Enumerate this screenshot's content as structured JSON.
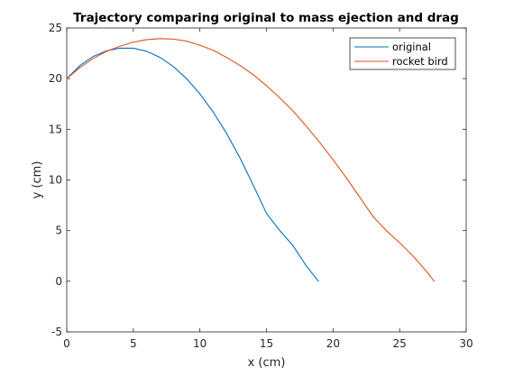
{
  "chart_data": {
    "type": "line",
    "title": "Trajectory comparing original to mass ejection and drag",
    "xlabel": "x (cm)",
    "ylabel": "y (cm)",
    "xlim": [
      0,
      30
    ],
    "ylim": [
      -5,
      25
    ],
    "xticks": [
      "0",
      "5",
      "10",
      "15",
      "20",
      "25",
      "30"
    ],
    "yticks": [
      "-5",
      "0",
      "5",
      "10",
      "15",
      "20",
      "25"
    ],
    "grid": false,
    "legend_position": "top-right",
    "series": [
      {
        "name": "original",
        "color": "#0072BD",
        "x": [
          0,
          1,
          2,
          3,
          4,
          5,
          6,
          7,
          8,
          9,
          10,
          11,
          12,
          13,
          14,
          15,
          16,
          17,
          18,
          18.9
        ],
        "y": [
          20.0,
          21.3,
          22.2,
          22.75,
          23.0,
          23.0,
          22.7,
          22.1,
          21.2,
          20.0,
          18.5,
          16.7,
          14.6,
          12.2,
          9.5,
          6.7,
          5.0,
          3.5,
          1.5,
          0.0
        ]
      },
      {
        "name": "rocket bird",
        "color": "#D95319",
        "x": [
          0,
          1,
          2,
          3,
          4,
          5,
          6,
          7,
          8,
          9,
          10,
          11,
          12,
          13,
          14,
          15,
          16,
          17,
          18,
          19,
          20,
          21,
          22,
          23,
          24,
          25,
          26,
          27,
          27.6
        ],
        "y": [
          20.0,
          21.1,
          22.0,
          22.7,
          23.2,
          23.6,
          23.85,
          23.95,
          23.9,
          23.7,
          23.3,
          22.8,
          22.1,
          21.3,
          20.4,
          19.3,
          18.1,
          16.8,
          15.3,
          13.7,
          12.0,
          10.2,
          8.3,
          6.4,
          5.0,
          3.8,
          2.5,
          1.0,
          0.0
        ]
      }
    ]
  }
}
